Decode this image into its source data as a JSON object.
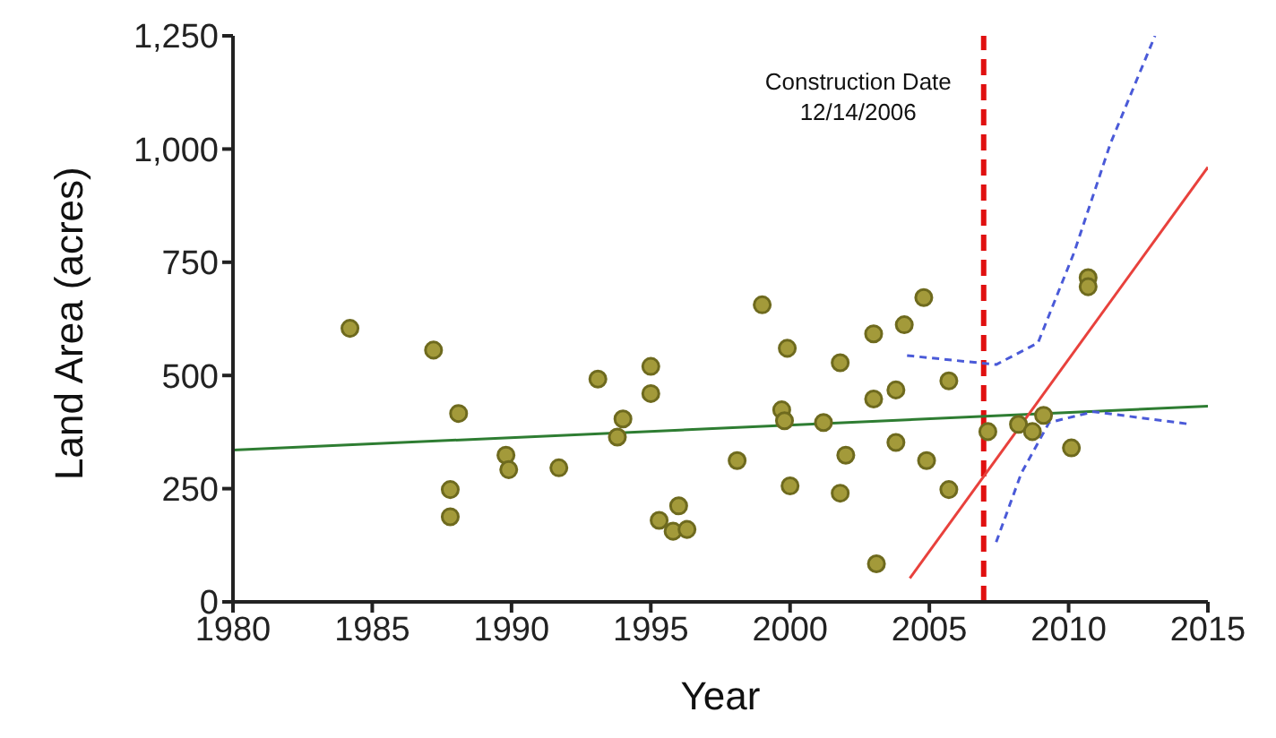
{
  "chart_data": {
    "type": "scatter",
    "xlabel": "Year",
    "ylabel": "Land  Area (acres)",
    "xlim": [
      1980,
      2015
    ],
    "xticks": [
      1980,
      1985,
      1990,
      1995,
      2000,
      2005,
      2010,
      2015
    ],
    "ylim": [
      0,
      1250
    ],
    "yticks": [
      0,
      {
        "value": 250,
        "label": "250"
      },
      {
        "value": 500,
        "label": "500"
      },
      {
        "value": 750,
        "label": "750"
      },
      {
        "value": 1000,
        "label": "1,000"
      },
      {
        "value": 1250,
        "label": "1,250"
      }
    ],
    "grid": false,
    "legend": false,
    "series": [
      {
        "marker": "circle",
        "color": "#a39a3a",
        "x": [
          1984.2,
          1987.2,
          1988.1,
          1987.8,
          1987.8,
          1989.8,
          1989.9,
          1991.7,
          1993.1,
          1993.8,
          1994.0,
          1995.0,
          1995.0,
          1995.3,
          1996.0,
          1995.8,
          1996.3,
          1998.1,
          1999.0,
          1999.9,
          1999.7,
          1999.8,
          2000.0,
          2001.2,
          2001.8,
          2002.0,
          2001.8,
          2003.0,
          2003.0,
          2003.8,
          2003.8,
          2003.1,
          2004.1,
          2004.8,
          2004.9,
          2005.7,
          2005.7,
          2007.1,
          2008.2,
          2008.7,
          2009.1,
          2010.1,
          2010.7,
          2010.7
        ],
        "values": [
          604,
          556,
          416,
          248,
          188,
          324,
          292,
          296,
          492,
          364,
          404,
          520,
          460,
          180,
          212,
          156,
          160,
          312,
          656,
          560,
          424,
          400,
          256,
          396,
          528,
          324,
          240,
          592,
          448,
          468,
          352,
          84,
          612,
          672,
          312,
          248,
          488,
          376,
          392,
          376,
          412,
          340,
          716,
          696
        ]
      },
      {
        "type": "line",
        "marker": "none",
        "color": "#2e7d32",
        "line_style": "solid",
        "x": [
          1980,
          2015
        ],
        "values": [
          335,
          432
        ]
      },
      {
        "type": "line",
        "marker": "none",
        "color": "#e8413c",
        "line_style": "solid",
        "x": [
          2004.3,
          2015
        ],
        "values": [
          52,
          960
        ]
      },
      {
        "type": "line",
        "marker": "none",
        "color": "#4a5ad8",
        "line_style": "dashed",
        "x": [
          2004.2,
          2007.4,
          2008.9,
          2010.2,
          2011.5,
          2013.1
        ],
        "values": [
          544,
          524,
          572,
          772,
          1012,
          1250
        ]
      },
      {
        "type": "line",
        "marker": "none",
        "color": "#4a5ad8",
        "line_style": "dashed",
        "x": [
          2007.4,
          2008.3,
          2009.3,
          2010.9,
          2014.4
        ],
        "values": [
          132,
          284,
          396,
          420,
          392
        ]
      }
    ],
    "ref_lines": [
      {
        "axis": "x",
        "value": 2006.95,
        "label": "Construction Date\n12/14/2006",
        "color": "#e01010",
        "line_style": "dashed"
      }
    ]
  }
}
